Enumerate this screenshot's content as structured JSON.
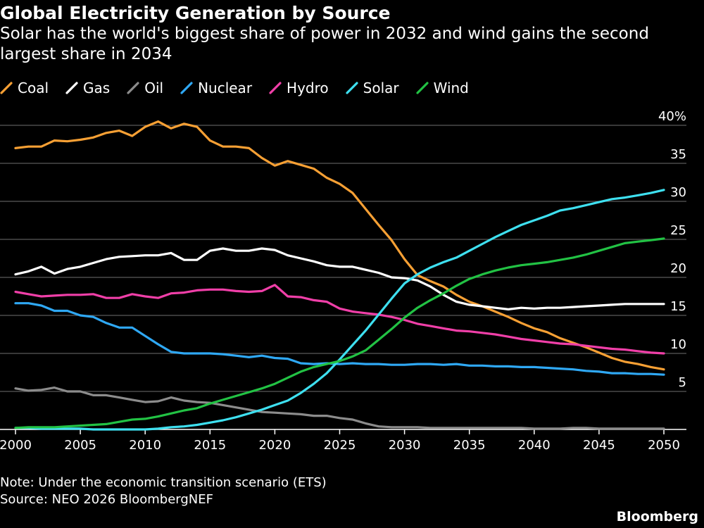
{
  "chart_data": {
    "type": "line",
    "title": "Global Electricity Generation by Source",
    "subtitle": "Solar has the world's biggest share of power in 2032 and wind gains the second largest share in 2034",
    "xlabel": "",
    "ylabel": "",
    "xlim": [
      2000,
      2050
    ],
    "ylim": [
      0,
      40
    ],
    "x_ticks": [
      "2000",
      "2005",
      "2010",
      "2015",
      "2020",
      "2025",
      "2030",
      "2035",
      "2040",
      "2045",
      "2050"
    ],
    "y_ticks": [
      {
        "value": 5,
        "label": "5"
      },
      {
        "value": 10,
        "label": "10"
      },
      {
        "value": 15,
        "label": "15"
      },
      {
        "value": 20,
        "label": "20"
      },
      {
        "value": 25,
        "label": "25"
      },
      {
        "value": 30,
        "label": "30"
      },
      {
        "value": 35,
        "label": "35"
      },
      {
        "value": 40,
        "label": "40%"
      }
    ],
    "grid": true,
    "legend_position": "top-left",
    "x": [
      2000,
      2001,
      2002,
      2003,
      2004,
      2005,
      2006,
      2007,
      2008,
      2009,
      2010,
      2011,
      2012,
      2013,
      2014,
      2015,
      2016,
      2017,
      2018,
      2019,
      2020,
      2021,
      2022,
      2023,
      2024,
      2025,
      2026,
      2027,
      2028,
      2029,
      2030,
      2031,
      2032,
      2033,
      2034,
      2035,
      2036,
      2037,
      2038,
      2039,
      2040,
      2041,
      2042,
      2043,
      2044,
      2045,
      2046,
      2047,
      2048,
      2049,
      2050
    ],
    "series": [
      {
        "name": "Coal",
        "color": "#f7a034",
        "values": [
          37.0,
          37.2,
          37.2,
          38.0,
          37.9,
          38.1,
          38.4,
          39.0,
          39.3,
          38.6,
          39.8,
          40.5,
          39.6,
          40.2,
          39.8,
          38.0,
          37.2,
          37.2,
          37.0,
          35.7,
          34.7,
          35.3,
          34.8,
          34.3,
          33.1,
          32.3,
          31.1,
          29.0,
          26.9,
          24.9,
          22.4,
          20.3,
          19.5,
          18.8,
          17.7,
          16.8,
          16.2,
          15.5,
          14.8,
          14.0,
          13.3,
          12.8,
          12.0,
          11.4,
          10.8,
          10.1,
          9.4,
          8.9,
          8.6,
          8.2,
          7.9
        ]
      },
      {
        "name": "Gas",
        "color": "#ffffff",
        "values": [
          20.4,
          20.8,
          21.4,
          20.5,
          21.1,
          21.4,
          21.9,
          22.4,
          22.7,
          22.8,
          22.9,
          22.9,
          23.2,
          22.3,
          22.3,
          23.5,
          23.8,
          23.5,
          23.5,
          23.8,
          23.6,
          22.9,
          22.5,
          22.1,
          21.6,
          21.4,
          21.4,
          21.0,
          20.6,
          20.0,
          19.9,
          19.6,
          18.8,
          17.7,
          16.8,
          16.4,
          16.2,
          16.0,
          15.8,
          16.0,
          15.9,
          16.0,
          16.0,
          16.1,
          16.2,
          16.3,
          16.4,
          16.5,
          16.5,
          16.5,
          16.5
        ]
      },
      {
        "name": "Oil",
        "color": "#8c8c8c",
        "values": [
          5.4,
          5.1,
          5.2,
          5.5,
          5.0,
          5.0,
          4.5,
          4.5,
          4.2,
          3.9,
          3.6,
          3.7,
          4.2,
          3.8,
          3.6,
          3.5,
          3.2,
          2.9,
          2.6,
          2.3,
          2.2,
          2.1,
          2.0,
          1.8,
          1.8,
          1.5,
          1.3,
          0.8,
          0.4,
          0.3,
          0.3,
          0.3,
          0.2,
          0.2,
          0.2,
          0.2,
          0.2,
          0.2,
          0.2,
          0.2,
          0.1,
          0.1,
          0.1,
          0.2,
          0.2,
          0.1,
          0.1,
          0.1,
          0.1,
          0.1,
          0.1
        ]
      },
      {
        "name": "Nuclear",
        "color": "#2fa8f4",
        "values": [
          16.6,
          16.6,
          16.3,
          15.6,
          15.6,
          15.0,
          14.8,
          14.0,
          13.4,
          13.4,
          12.3,
          11.2,
          10.2,
          10.0,
          10.0,
          10.0,
          9.9,
          9.7,
          9.5,
          9.7,
          9.4,
          9.3,
          8.7,
          8.6,
          8.7,
          8.6,
          8.7,
          8.6,
          8.6,
          8.5,
          8.5,
          8.6,
          8.6,
          8.5,
          8.6,
          8.4,
          8.4,
          8.3,
          8.3,
          8.2,
          8.2,
          8.1,
          8.0,
          7.9,
          7.7,
          7.6,
          7.4,
          7.4,
          7.3,
          7.3,
          7.2
        ]
      },
      {
        "name": "Hydro",
        "color": "#f03fa8",
        "values": [
          18.1,
          17.8,
          17.5,
          17.6,
          17.7,
          17.7,
          17.8,
          17.3,
          17.3,
          17.8,
          17.5,
          17.3,
          17.9,
          18.0,
          18.3,
          18.4,
          18.4,
          18.2,
          18.1,
          18.2,
          19.0,
          17.5,
          17.4,
          17.0,
          16.8,
          15.9,
          15.5,
          15.3,
          15.1,
          14.8,
          14.4,
          13.9,
          13.6,
          13.3,
          13.0,
          12.9,
          12.7,
          12.5,
          12.2,
          11.9,
          11.7,
          11.5,
          11.3,
          11.2,
          11.0,
          10.8,
          10.6,
          10.5,
          10.3,
          10.1,
          10.0
        ]
      },
      {
        "name": "Solar",
        "color": "#3ee0f0",
        "values": [
          0.2,
          0.2,
          0.1,
          0.1,
          0.1,
          0.1,
          0.0,
          0.0,
          0.0,
          0.0,
          0.0,
          0.1,
          0.3,
          0.4,
          0.6,
          0.9,
          1.2,
          1.6,
          2.1,
          2.6,
          3.2,
          3.8,
          4.8,
          6.0,
          7.4,
          9.2,
          11.1,
          13.0,
          15.1,
          17.2,
          19.2,
          20.4,
          21.3,
          22.0,
          22.6,
          23.5,
          24.4,
          25.3,
          26.1,
          26.9,
          27.5,
          28.1,
          28.8,
          29.1,
          29.5,
          29.9,
          30.3,
          30.5,
          30.8,
          31.1,
          31.5
        ]
      },
      {
        "name": "Wind",
        "color": "#22c244",
        "values": [
          0.2,
          0.3,
          0.3,
          0.3,
          0.4,
          0.5,
          0.6,
          0.7,
          1.0,
          1.3,
          1.4,
          1.7,
          2.1,
          2.5,
          2.8,
          3.4,
          3.9,
          4.4,
          4.9,
          5.4,
          6.0,
          6.8,
          7.6,
          8.2,
          8.6,
          9.0,
          9.6,
          10.4,
          11.8,
          13.2,
          14.7,
          16.0,
          17.0,
          17.9,
          18.9,
          19.8,
          20.4,
          20.9,
          21.3,
          21.6,
          21.8,
          22.0,
          22.3,
          22.6,
          23.0,
          23.5,
          24.0,
          24.5,
          24.7,
          24.9,
          25.1
        ]
      }
    ]
  },
  "footer": {
    "note": "Note: Under the economic transition scenario (ETS)",
    "source": "Source: NEO 2026 BloombergNEF",
    "brand": "Bloomberg"
  }
}
